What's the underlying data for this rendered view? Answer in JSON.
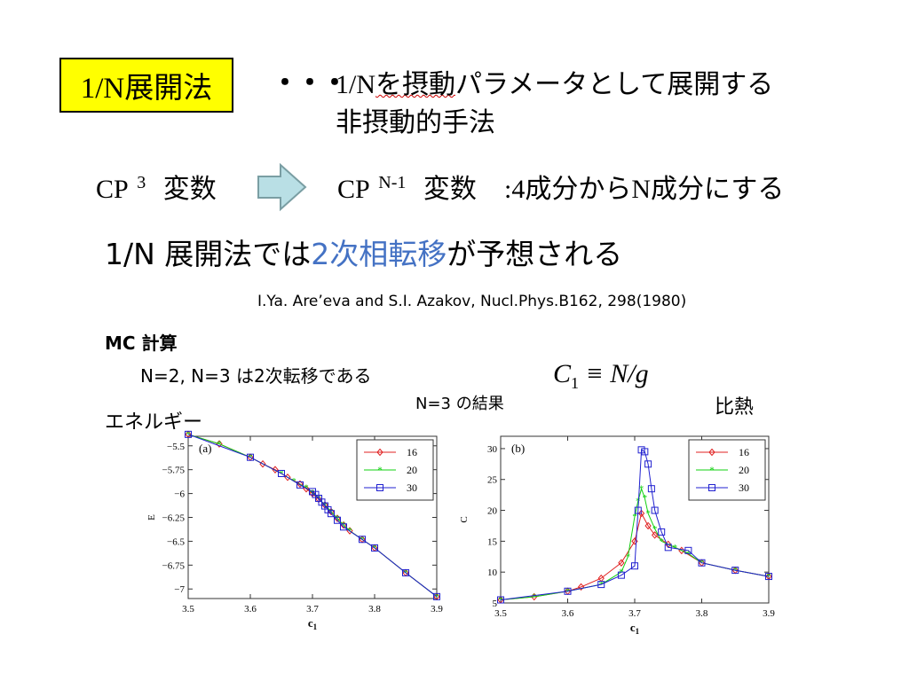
{
  "header": {
    "badge_label": "1/N展開法",
    "ellipsis": "・・・",
    "desc_line1_a": "1/N",
    "desc_line1_b": "を摂動",
    "desc_line1_c": "パラメータとして展開する",
    "desc_line2": "非摂動的手法"
  },
  "variables": {
    "from_symbol": "CP",
    "from_sup": "3",
    "from_word": "変数",
    "to_symbol": "CP",
    "to_sup": "N-1",
    "to_word": "変数",
    "note_a": ":4",
    "note_b": "成分から",
    "note_c": "N",
    "note_d": "成分にする"
  },
  "main": {
    "statement_a": "1/N 展開法では",
    "statement_highlight": "2次相転移",
    "statement_b": "が予想される",
    "reference": "I.Ya. Are’eva and S.I. Azakov, Nucl.Phys.B162, 298(1980)",
    "mc_title": "MC 計算",
    "mc_note": "N=2, N=3 は2次転移である",
    "formula_lhs": "C",
    "formula_sub": "1",
    "formula_rhs": " ≡ N/g",
    "result_label": "N=3 の結果",
    "energy_label": "エネルギー",
    "specific_heat_label": "比熱"
  },
  "colors": {
    "badge_bg": "#ffff00",
    "highlight": "#4472c4",
    "series_16": "#e02020",
    "series_20": "#10d010",
    "series_30": "#2020d0"
  },
  "chart_data": [
    {
      "type": "line",
      "panel_label": "(a)",
      "xlabel": "c1",
      "ylabel": "E",
      "xlim": [
        3.5,
        3.9
      ],
      "ylim": [
        -7.1,
        -5.4
      ],
      "x_ticks": [
        "3.5",
        "3.6",
        "3.7",
        "3.8",
        "3.9"
      ],
      "y_ticks": [
        "-5.5",
        "-5.75",
        "-6",
        "-6.25",
        "-6.5",
        "-6.75",
        "-7"
      ],
      "legend": [
        "16",
        "20",
        "30"
      ],
      "series": [
        {
          "name": "16",
          "color": "#e02020",
          "x": [
            3.5,
            3.55,
            3.6,
            3.62,
            3.64,
            3.66,
            3.68,
            3.69,
            3.7,
            3.71,
            3.72,
            3.73,
            3.74,
            3.75,
            3.76,
            3.78,
            3.8,
            3.85,
            3.9
          ],
          "y": [
            -5.38,
            -5.48,
            -5.62,
            -5.69,
            -5.75,
            -5.83,
            -5.9,
            -5.95,
            -6.0,
            -6.06,
            -6.12,
            -6.19,
            -6.26,
            -6.33,
            -6.39,
            -6.48,
            -6.57,
            -6.83,
            -7.08
          ]
        },
        {
          "name": "20",
          "color": "#10d010",
          "x": [
            3.5,
            3.55,
            3.6,
            3.65,
            3.67,
            3.69,
            3.7,
            3.71,
            3.72,
            3.73,
            3.74,
            3.75,
            3.76,
            3.78,
            3.8,
            3.85,
            3.9
          ],
          "y": [
            -5.38,
            -5.48,
            -5.62,
            -5.79,
            -5.87,
            -5.94,
            -5.99,
            -6.05,
            -6.12,
            -6.19,
            -6.26,
            -6.33,
            -6.39,
            -6.48,
            -6.57,
            -6.83,
            -7.08
          ]
        },
        {
          "name": "30",
          "color": "#2020d0",
          "x": [
            3.5,
            3.6,
            3.65,
            3.68,
            3.7,
            3.705,
            3.71,
            3.715,
            3.72,
            3.725,
            3.73,
            3.74,
            3.75,
            3.78,
            3.8,
            3.85,
            3.9
          ],
          "y": [
            -5.38,
            -5.62,
            -5.79,
            -5.91,
            -5.98,
            -6.01,
            -6.05,
            -6.09,
            -6.13,
            -6.17,
            -6.21,
            -6.28,
            -6.35,
            -6.48,
            -6.57,
            -6.83,
            -7.08
          ]
        }
      ]
    },
    {
      "type": "line",
      "panel_label": "(b)",
      "xlabel": "c1",
      "ylabel": "C",
      "xlim": [
        3.5,
        3.9
      ],
      "ylim": [
        5,
        32
      ],
      "x_ticks": [
        "3.5",
        "3.6",
        "3.7",
        "3.8",
        "3.9"
      ],
      "y_ticks": [
        "5",
        "10",
        "15",
        "20",
        "25",
        "30"
      ],
      "legend": [
        "16",
        "20",
        "30"
      ],
      "series": [
        {
          "name": "16",
          "color": "#e02020",
          "x": [
            3.5,
            3.55,
            3.6,
            3.62,
            3.65,
            3.68,
            3.7,
            3.71,
            3.72,
            3.73,
            3.75,
            3.77,
            3.8,
            3.85,
            3.9
          ],
          "y": [
            5.5,
            6.0,
            6.9,
            7.6,
            9.0,
            11.5,
            15.0,
            19.5,
            17.5,
            16.0,
            14.5,
            13.5,
            11.5,
            10.3,
            9.3
          ]
        },
        {
          "name": "20",
          "color": "#10d010",
          "x": [
            3.5,
            3.55,
            3.6,
            3.65,
            3.68,
            3.69,
            3.7,
            3.705,
            3.71,
            3.715,
            3.72,
            3.73,
            3.74,
            3.76,
            3.78,
            3.8,
            3.85,
            3.9
          ],
          "y": [
            5.5,
            6.0,
            6.9,
            8.0,
            10.0,
            12.5,
            19.0,
            21.5,
            23.5,
            22.0,
            19.5,
            17.0,
            15.0,
            14.0,
            13.0,
            11.5,
            10.3,
            9.3
          ]
        },
        {
          "name": "30",
          "color": "#2020d0",
          "x": [
            3.5,
            3.6,
            3.65,
            3.68,
            3.7,
            3.705,
            3.71,
            3.715,
            3.72,
            3.725,
            3.73,
            3.74,
            3.75,
            3.78,
            3.8,
            3.85,
            3.9
          ],
          "y": [
            5.5,
            6.9,
            8.0,
            9.5,
            11.0,
            20.0,
            29.8,
            29.5,
            27.5,
            23.5,
            20.0,
            16.5,
            14.0,
            13.5,
            11.5,
            10.3,
            9.3
          ]
        }
      ]
    }
  ]
}
